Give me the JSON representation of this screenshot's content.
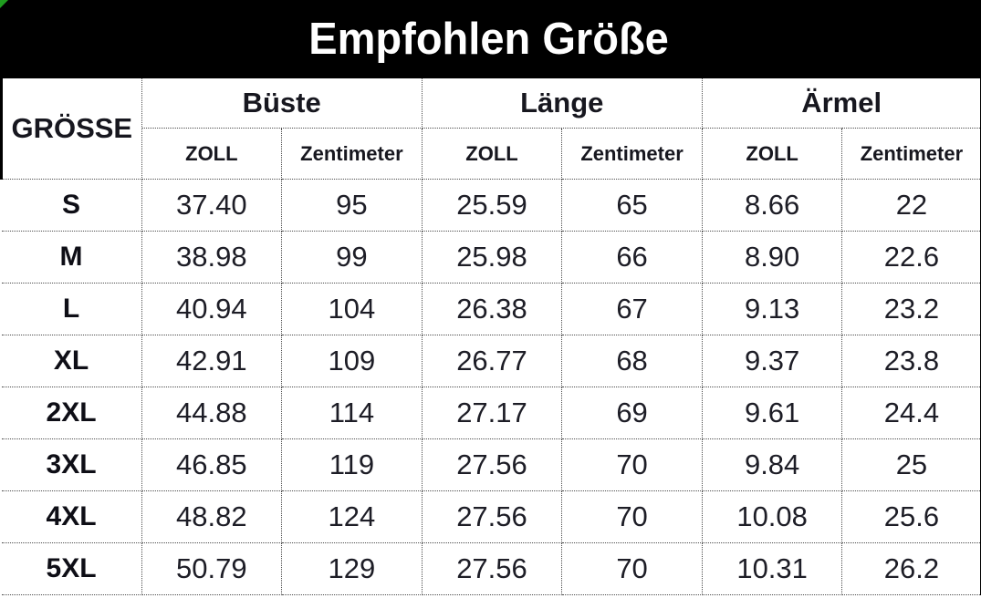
{
  "title": "Empfohlen Größe",
  "table": {
    "size_header": "GRÖSSE",
    "groups": [
      {
        "label": "Büste"
      },
      {
        "label": "Länge"
      },
      {
        "label": "Ärmel"
      }
    ],
    "unit_headers": {
      "inch": "ZOLL",
      "cm": "Zentimeter"
    },
    "rows": [
      {
        "size": "S",
        "values": [
          "37.40",
          "95",
          "25.59",
          "65",
          "8.66",
          "22"
        ]
      },
      {
        "size": "M",
        "values": [
          "38.98",
          "99",
          "25.98",
          "66",
          "8.90",
          "22.6"
        ]
      },
      {
        "size": "L",
        "values": [
          "40.94",
          "104",
          "26.38",
          "67",
          "9.13",
          "23.2"
        ]
      },
      {
        "size": "XL",
        "values": [
          "42.91",
          "109",
          "26.77",
          "68",
          "9.37",
          "23.8"
        ]
      },
      {
        "size": "2XL",
        "values": [
          "44.88",
          "114",
          "27.17",
          "69",
          "9.61",
          "24.4"
        ]
      },
      {
        "size": "3XL",
        "values": [
          "46.85",
          "119",
          "27.56",
          "70",
          "9.84",
          "25"
        ]
      },
      {
        "size": "4XL",
        "values": [
          "48.82",
          "124",
          "27.56",
          "70",
          "10.08",
          "25.6"
        ]
      },
      {
        "size": "5XL",
        "values": [
          "50.79",
          "129",
          "27.56",
          "70",
          "10.31",
          "26.2"
        ]
      }
    ],
    "colors": {
      "header_bg": "#000000",
      "header_text": "#ffffff",
      "grid_line": "#4d4d4d",
      "corner_marker": "#1f9d1f"
    }
  }
}
